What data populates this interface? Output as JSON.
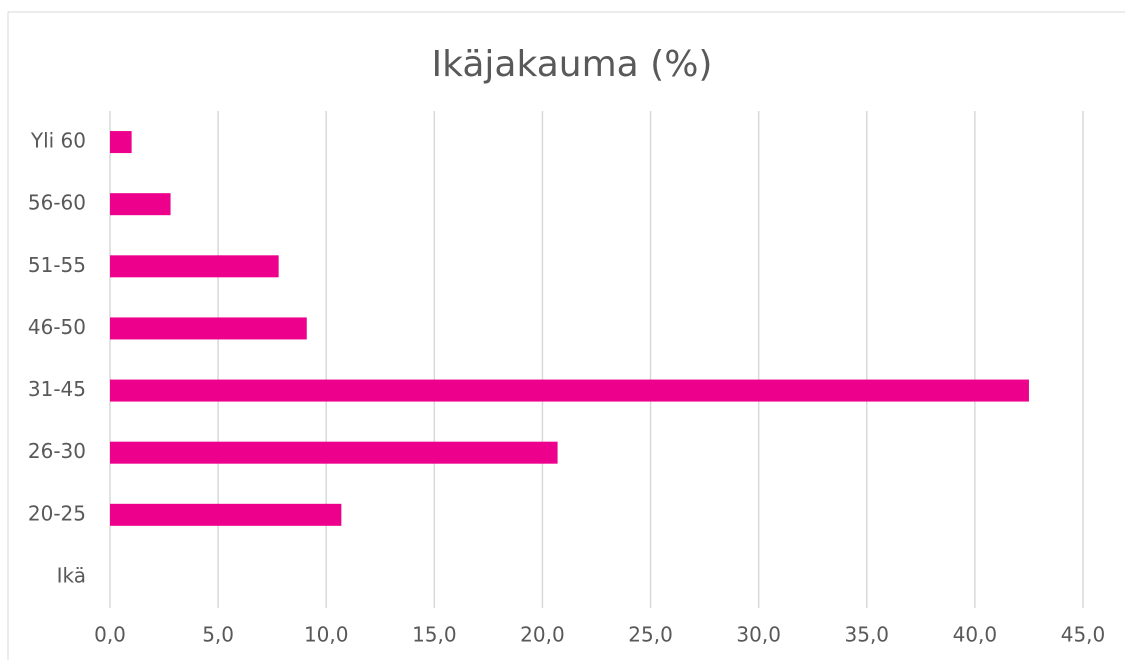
{
  "chart_data": {
    "type": "bar",
    "orientation": "horizontal",
    "title": "Ikäjakauma (%)",
    "categories": [
      "Ikä",
      "20-25",
      "26-30",
      "31-45",
      "46-50",
      "51-55",
      "56-60",
      "Yli 60"
    ],
    "values": [
      null,
      10.7,
      20.7,
      42.5,
      9.1,
      7.8,
      2.8,
      1.0
    ],
    "color": "#ec008c",
    "xlim": [
      0,
      45
    ],
    "xticks": [
      {
        "value": 0,
        "label": "0,0"
      },
      {
        "value": 5,
        "label": "5,0"
      },
      {
        "value": 10,
        "label": "10,0"
      },
      {
        "value": 15,
        "label": "15,0"
      },
      {
        "value": 20,
        "label": "20,0"
      },
      {
        "value": 25,
        "label": "25,0"
      },
      {
        "value": 30,
        "label": "30,0"
      },
      {
        "value": 35,
        "label": "35,0"
      },
      {
        "value": 40,
        "label": "40,0"
      },
      {
        "value": 45,
        "label": "45,0"
      }
    ],
    "grid": true
  }
}
